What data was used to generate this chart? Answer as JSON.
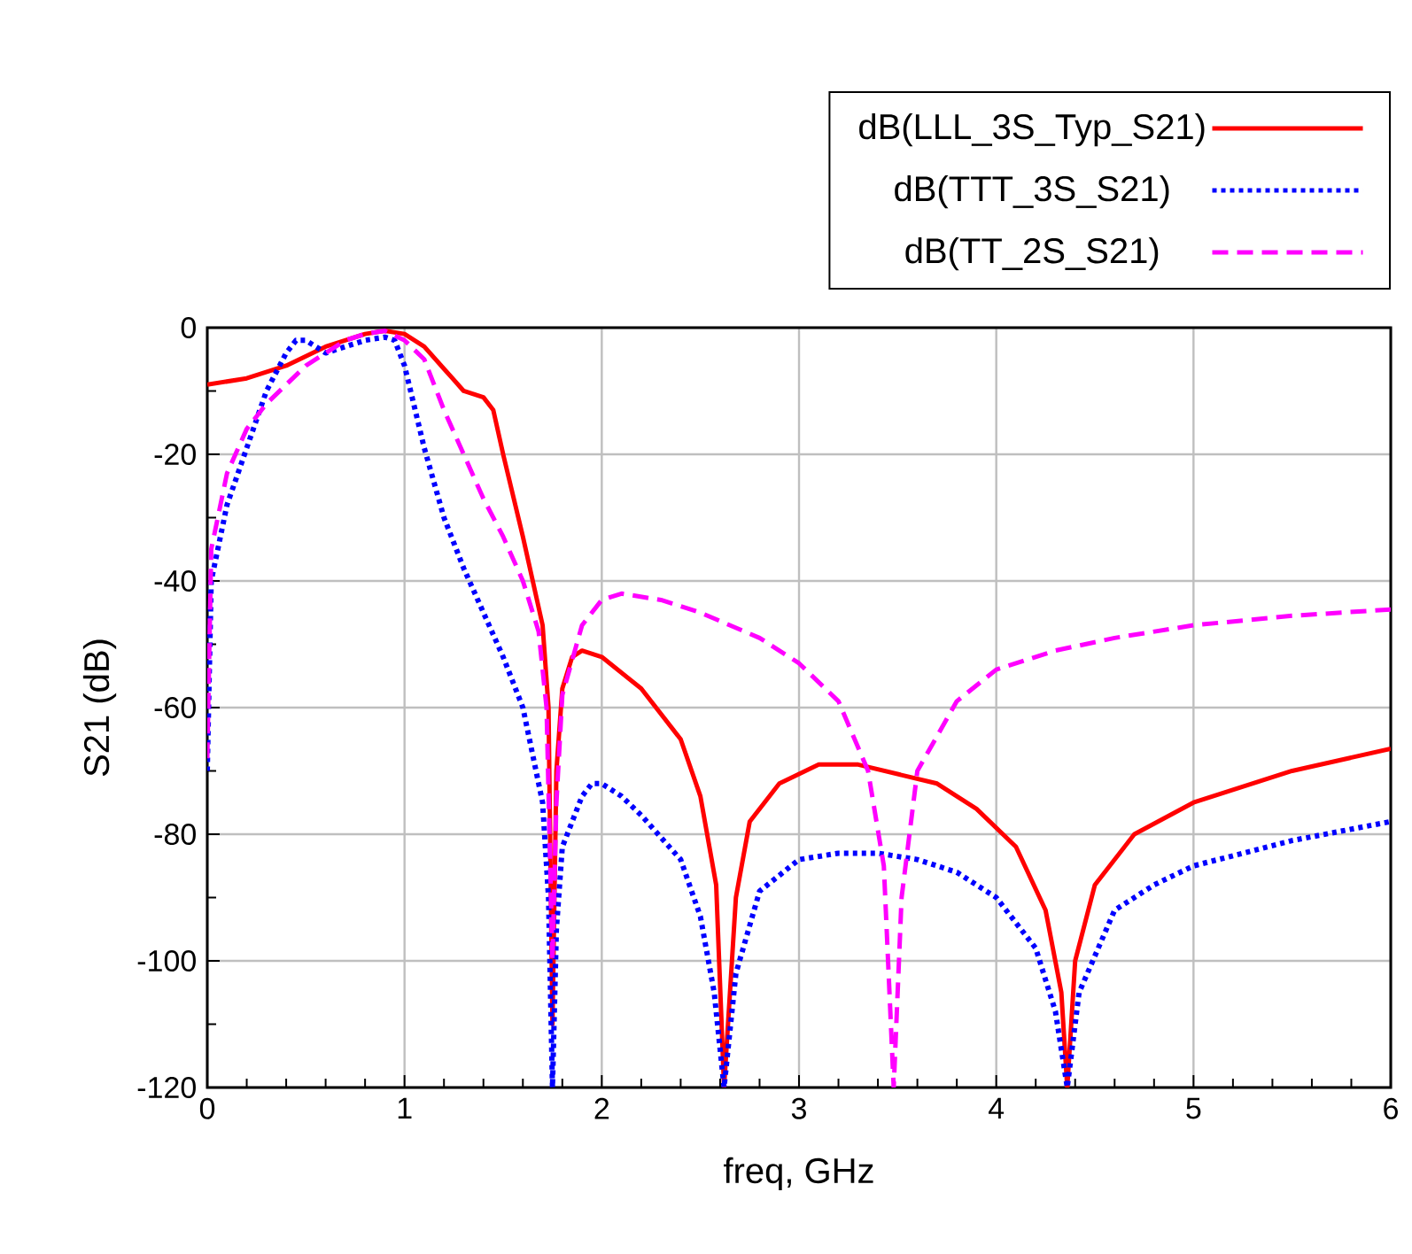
{
  "chart_data": {
    "type": "line",
    "xlabel": "freq, GHz",
    "ylabel": "S21 (dB)",
    "xlim": [
      0,
      6
    ],
    "ylim": [
      -120,
      0
    ],
    "xticks": [
      0,
      {
        "value": 0.2,
        "label": null
      },
      {
        "value": 0.4,
        "label": null
      },
      {
        "value": 0.6,
        "label": null
      },
      {
        "value": 0.8,
        "label": null
      },
      1,
      {
        "value": 1.2,
        "label": null
      },
      {
        "value": 1.4,
        "label": null
      },
      {
        "value": 1.6,
        "label": null
      },
      {
        "value": 1.8,
        "label": null
      },
      2,
      {
        "value": 2.2,
        "label": null
      },
      {
        "value": 2.4,
        "label": null
      },
      {
        "value": 2.6,
        "label": null
      },
      {
        "value": 2.8,
        "label": null
      },
      3,
      {
        "value": 3.2,
        "label": null
      },
      {
        "value": 3.4,
        "label": null
      },
      {
        "value": 3.6,
        "label": null
      },
      {
        "value": 3.8,
        "label": null
      },
      4,
      {
        "value": 4.2,
        "label": null
      },
      {
        "value": 4.4,
        "label": null
      },
      {
        "value": 4.6,
        "label": null
      },
      {
        "value": 4.8,
        "label": null
      },
      5,
      {
        "value": 5.2,
        "label": null
      },
      {
        "value": 5.4,
        "label": null
      },
      {
        "value": 5.6,
        "label": null
      },
      {
        "value": 5.8,
        "label": null
      },
      6
    ],
    "yticks": [
      -120,
      {
        "value": -110,
        "label": null
      },
      -100,
      {
        "value": -90,
        "label": null
      },
      -80,
      {
        "value": -70,
        "label": null
      },
      -60,
      {
        "value": -50,
        "label": null
      },
      -40,
      {
        "value": -30,
        "label": null
      },
      -20,
      {
        "value": -10,
        "label": null
      },
      0
    ],
    "grid": true,
    "legend": "top right",
    "series": [
      {
        "name": "dB(LLL_3S_Typ_S21)",
        "color": "#ff0000",
        "line_style": "solid",
        "x": [
          0,
          0.2,
          0.4,
          0.6,
          0.8,
          0.9,
          1.0,
          1.1,
          1.2,
          1.3,
          1.4,
          1.45,
          1.5,
          1.6,
          1.7,
          1.73,
          1.75,
          1.77,
          1.8,
          1.85,
          1.9,
          2.0,
          2.2,
          2.4,
          2.5,
          2.58,
          2.62,
          2.68,
          2.75,
          2.9,
          3.1,
          3.3,
          3.5,
          3.7,
          3.9,
          4.1,
          4.25,
          4.33,
          4.36,
          4.4,
          4.5,
          4.7,
          5.0,
          5.5,
          6
        ],
        "values": [
          -9,
          -8,
          -6,
          -3,
          -1,
          -0.5,
          -1,
          -3,
          -6.5,
          -10,
          -11,
          -13,
          -20,
          -33,
          -47,
          -60,
          -110,
          -70,
          -57,
          -52,
          -51,
          -52,
          -57,
          -65,
          -74,
          -88,
          -120,
          -90,
          -78,
          -72,
          -69,
          -69,
          -70.5,
          -72,
          -76,
          -82,
          -92,
          -105,
          -120,
          -100,
          -88,
          -80,
          -75,
          -70,
          -66.5
        ]
      },
      {
        "name": "dB(TTT_3S_S21)",
        "color": "#0000ff",
        "line_style": "dotted",
        "x": [
          0,
          0.02,
          0.1,
          0.2,
          0.3,
          0.4,
          0.45,
          0.5,
          0.6,
          0.7,
          0.8,
          0.9,
          0.95,
          1.0,
          1.1,
          1.2,
          1.3,
          1.4,
          1.5,
          1.6,
          1.7,
          1.73,
          1.75,
          1.77,
          1.8,
          1.9,
          1.95,
          2.0,
          2.1,
          2.2,
          2.4,
          2.5,
          2.57,
          2.62,
          2.68,
          2.8,
          3.0,
          3.2,
          3.4,
          3.6,
          3.8,
          4.0,
          4.2,
          4.3,
          4.36,
          4.42,
          4.6,
          4.8,
          5.0,
          5.5,
          6
        ],
        "values": [
          -70,
          -40,
          -28,
          -19,
          -10,
          -4,
          -2,
          -2,
          -4,
          -3,
          -2,
          -1.5,
          -2,
          -6,
          -19,
          -30,
          -38,
          -45,
          -52,
          -60,
          -75,
          -90,
          -120,
          -95,
          -82,
          -74,
          -72,
          -72,
          -74,
          -77,
          -84,
          -93,
          -105,
          -120,
          -102,
          -89,
          -84,
          -83,
          -83,
          -84,
          -86,
          -90,
          -98,
          -108,
          -120,
          -105,
          -92,
          -88,
          -85,
          -81,
          -78
        ]
      },
      {
        "name": "dB(TT_2S_S21)",
        "color": "#ff00ff",
        "line_style": "dashed",
        "x": [
          0,
          0.02,
          0.1,
          0.2,
          0.3,
          0.4,
          0.5,
          0.6,
          0.7,
          0.8,
          0.9,
          1.0,
          1.1,
          1.2,
          1.3,
          1.4,
          1.5,
          1.6,
          1.68,
          1.72,
          1.75,
          1.77,
          1.8,
          1.9,
          2.0,
          2.1,
          2.3,
          2.5,
          2.8,
          3.0,
          3.2,
          3.35,
          3.43,
          3.48,
          3.52,
          3.6,
          3.8,
          4.0,
          4.3,
          4.6,
          5.0,
          5.5,
          6
        ],
        "values": [
          -68,
          -35,
          -23,
          -16,
          -12,
          -9,
          -6,
          -4,
          -2,
          -1,
          -0.5,
          -2,
          -5,
          -13,
          -20,
          -27,
          -33,
          -40,
          -48,
          -60,
          -100,
          -75,
          -58,
          -47,
          -43,
          -42,
          -43,
          -45,
          -49,
          -53,
          -59,
          -70,
          -85,
          -120,
          -90,
          -70,
          -59,
          -54,
          -51,
          -49,
          -47,
          -45.5,
          -44.5
        ]
      }
    ]
  }
}
